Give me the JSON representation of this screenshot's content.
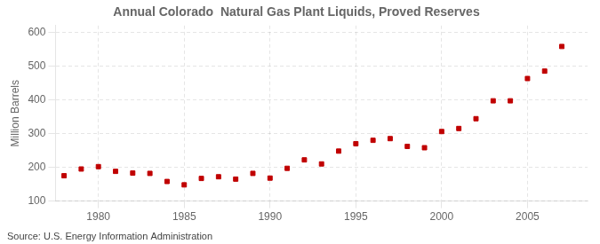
{
  "chart_data": {
    "type": "scatter",
    "title": "Annual Colorado  Natural Gas Plant Liquids, Proved Reserves",
    "ylabel": "Million Barrels",
    "annotations": [
      "Source: U.S. Energy Information Administration"
    ],
    "x": [
      1978,
      1979,
      1980,
      1981,
      1982,
      1983,
      1984,
      1985,
      1986,
      1987,
      1988,
      1989,
      1990,
      1991,
      1992,
      1993,
      1994,
      1995,
      1996,
      1997,
      1998,
      1999,
      2000,
      2001,
      2002,
      2003,
      2004,
      2005,
      2006,
      2007
    ],
    "values": [
      175,
      195,
      202,
      188,
      183,
      182,
      158,
      148,
      167,
      172,
      165,
      182,
      168,
      197,
      222,
      210,
      248,
      270,
      280,
      285,
      262,
      258,
      306,
      315,
      344,
      397,
      397,
      463,
      485,
      558
    ],
    "color": "#C00000",
    "marker": "square",
    "xlim": [
      1977.5,
      2008.5
    ],
    "xticks": [
      1980,
      1985,
      1990,
      1995,
      2000,
      2005
    ],
    "ylim": [
      100,
      620
    ],
    "yticks": [
      100,
      200,
      300,
      400,
      500,
      600
    ],
    "grid": true
  }
}
